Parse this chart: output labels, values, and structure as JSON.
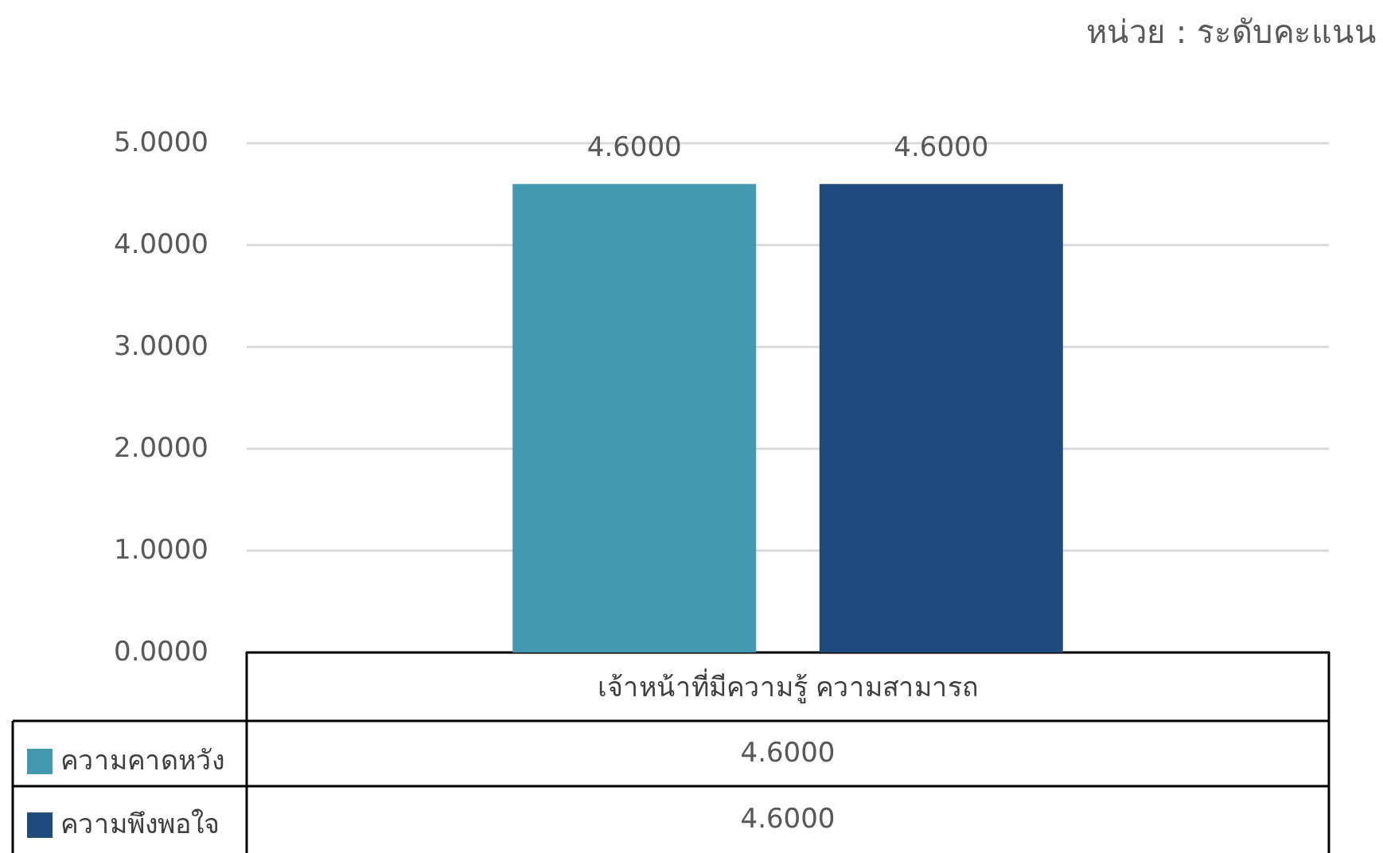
{
  "chart_data": {
    "type": "bar",
    "categories": [
      "เจ้าหน้าที่มีความรู้ ความสามารถ"
    ],
    "series": [
      {
        "name": "ความคาดหวัง",
        "color": "#4399b0",
        "values": [
          4.6
        ],
        "value_labels": [
          "4.6000"
        ]
      },
      {
        "name": "ความพึงพอใจ",
        "color": "#1f4a7c",
        "values": [
          4.6
        ],
        "value_labels": [
          "4.6000"
        ]
      }
    ],
    "ylim": [
      0,
      5
    ],
    "yticks": [
      {
        "value": 0,
        "label": "0.0000"
      },
      {
        "value": 1,
        "label": "1.0000"
      },
      {
        "value": 2,
        "label": "2.0000"
      },
      {
        "value": 3,
        "label": "3.0000"
      },
      {
        "value": 4,
        "label": "4.0000"
      },
      {
        "value": 5,
        "label": "5.0000"
      }
    ],
    "grid": "y",
    "legend": "bottom left",
    "annotations": [
      "หน่วย : ระดับคะแนน"
    ]
  }
}
